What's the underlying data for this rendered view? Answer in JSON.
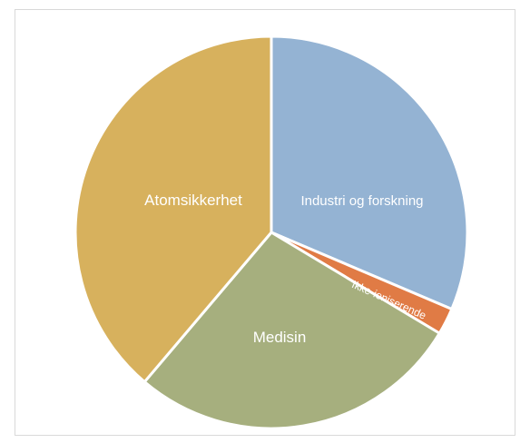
{
  "chart_data": {
    "type": "pie",
    "title": "",
    "series": [
      {
        "values": [
          31.4,
          2.2,
          27.6,
          38.8
        ],
        "categories": [
          "Industri og forskning",
          "Ikke-ioniserende",
          "Medisin",
          "Atomsikkerhet"
        ],
        "colors": [
          "#94b3d3",
          "#e07b45",
          "#a6af7e",
          "#d7b15d"
        ]
      }
    ],
    "labels": {
      "industri": "Industri og forskning",
      "ikke": "Ikke-ioniserende",
      "medisin": "Medisin",
      "atom": "Atomsikkerhet"
    },
    "start_angle": "12 o'clock",
    "direction": "clockwise",
    "legend": "none"
  }
}
